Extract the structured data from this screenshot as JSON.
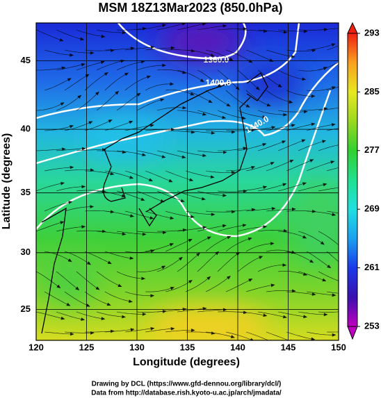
{
  "chart_data": {
    "type": "map",
    "title": "MSM 18Z13Mar2023 (850.0hPa)",
    "x_label": "Longitude (degrees)",
    "y_label": "Latitude  (degrees)",
    "xlim": [
      120,
      150
    ],
    "xticks": [
      120,
      125,
      130,
      135,
      140,
      145,
      150
    ],
    "ylim": [
      22.2,
      47.6
    ],
    "yticks": [
      25,
      30,
      35,
      40,
      45
    ],
    "y_scale": "mercator",
    "grid": true,
    "colorbar": {
      "clim": [
        253,
        293
      ],
      "ticks": [
        253,
        261,
        269,
        277,
        285,
        293
      ]
    },
    "contour_labels": [
      "1360.0",
      "1400.0",
      "1440.0"
    ],
    "footer": [
      "Drawing by DCL (https://www.gfd-dennou.org/library/dcl/)",
      "Data from http://database.rish.kyoto-u.ac.jp/arch/jmadata/"
    ]
  }
}
